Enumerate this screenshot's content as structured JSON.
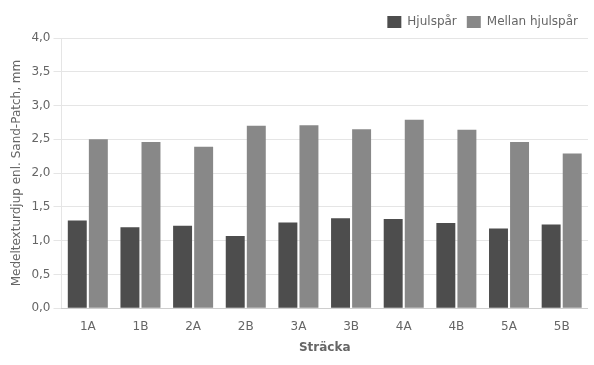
{
  "chart_data": {
    "type": "bar",
    "xlabel": "Sträcka",
    "ylabel": "Medeltexturdjup enl. Sand-Patch, mm",
    "categories": [
      "1A",
      "1B",
      "2A",
      "2B",
      "3A",
      "3B",
      "4A",
      "4B",
      "5A",
      "5B"
    ],
    "series": [
      {
        "name": "Hjulspår",
        "color": "#4d4d4d",
        "values": [
          1.3,
          1.2,
          1.22,
          1.07,
          1.27,
          1.33,
          1.32,
          1.26,
          1.18,
          1.24
        ]
      },
      {
        "name": "Mellan hjulspår",
        "color": "#888888",
        "values": [
          2.5,
          2.46,
          2.39,
          2.7,
          2.71,
          2.65,
          2.79,
          2.64,
          2.46,
          2.29
        ]
      }
    ],
    "ylim": [
      0.0,
      4.0
    ],
    "yticks": [
      {
        "value": 0.0,
        "label": "0,0"
      },
      {
        "value": 0.5,
        "label": "0,5"
      },
      {
        "value": 1.0,
        "label": "1,0"
      },
      {
        "value": 1.5,
        "label": "1,5"
      },
      {
        "value": 2.0,
        "label": "2,0"
      },
      {
        "value": 2.5,
        "label": "2,5"
      },
      {
        "value": 3.0,
        "label": "3,0"
      },
      {
        "value": 3.5,
        "label": "3,5"
      },
      {
        "value": 4.0,
        "label": "4,0"
      }
    ],
    "grid": true,
    "legend": "upper right"
  }
}
